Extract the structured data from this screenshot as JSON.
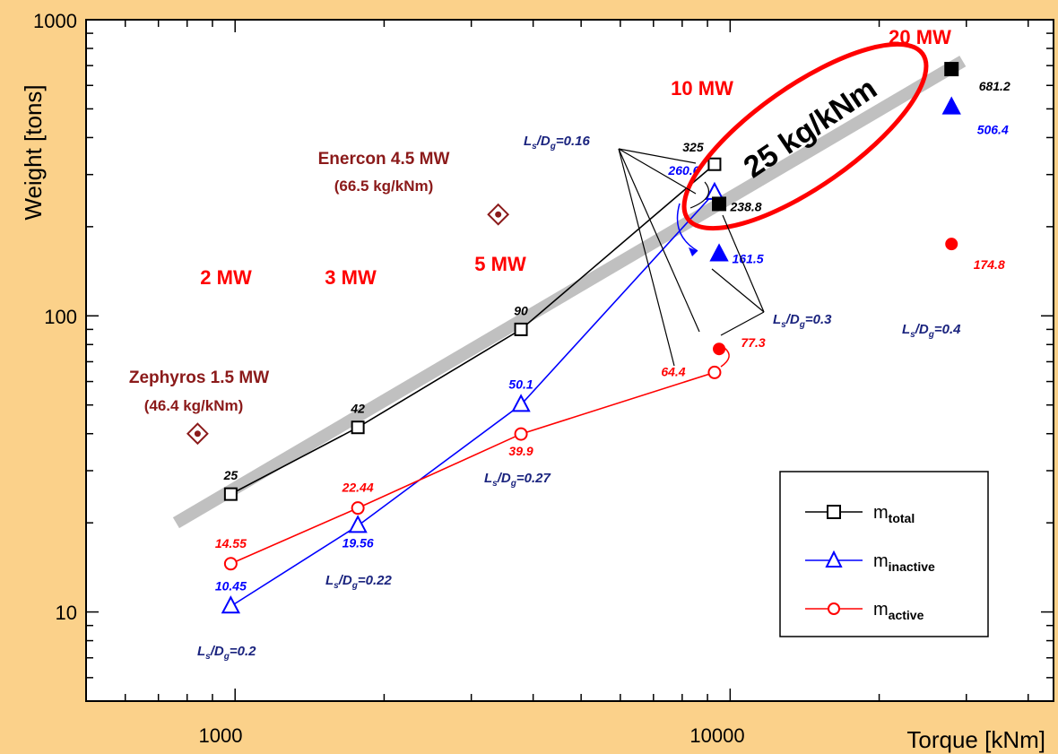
{
  "chart_data": {
    "type": "line",
    "xlabel": "Torque [kNm]",
    "ylabel": "Weight [tons]",
    "xscale": "log",
    "yscale": "log",
    "xlim": [
      500,
      45000
    ],
    "ylim": [
      5,
      1000
    ],
    "x_ticks": [
      {
        "v": 1000,
        "label": "1000"
      },
      {
        "v": 10000,
        "label": "10000"
      }
    ],
    "y_ticks": [
      {
        "v": 10,
        "label": "10"
      },
      {
        "v": 100,
        "label": "100"
      },
      {
        "v": 1000,
        "label": "1000"
      }
    ],
    "trend": {
      "x": [
        760,
        29500
      ],
      "y": [
        20,
        725
      ],
      "label": "25 kg/kNm"
    },
    "series": [
      {
        "name": "m",
        "sub": "total",
        "key": "total",
        "color": "#000000",
        "marker": "square",
        "x": [
          980,
          1770,
          3780,
          9300
        ],
        "y": [
          25,
          42,
          90,
          325
        ],
        "labels": [
          "25",
          "42",
          "90",
          "325"
        ]
      },
      {
        "name": "m",
        "sub": "inactive",
        "key": "inactive",
        "color": "#0000ff",
        "marker": "triangle",
        "x": [
          980,
          1770,
          3780,
          9300
        ],
        "y": [
          10.45,
          19.56,
          50.1,
          260.6
        ],
        "labels": [
          "10.45",
          "19.56",
          "50.1",
          "260.6"
        ]
      },
      {
        "name": "m",
        "sub": "active",
        "key": "active",
        "color": "#ff0000",
        "marker": "circle",
        "x": [
          980,
          1770,
          3780,
          9300
        ],
        "y": [
          14.55,
          22.44,
          39.9,
          64.4
        ],
        "labels": [
          "14.55",
          "22.44",
          "39.9",
          "64.4"
        ]
      }
    ],
    "extra_points": [
      {
        "key": "total",
        "x": [
          9500,
          28000
        ],
        "y": [
          238.8,
          681.2
        ],
        "labels": [
          "238.8",
          "681.2"
        ]
      },
      {
        "key": "inactive",
        "x": [
          9500,
          28000
        ],
        "y": [
          161.5,
          506.4
        ],
        "labels": [
          "161.5",
          "506.4"
        ]
      },
      {
        "key": "active",
        "x": [
          9500,
          28000
        ],
        "y": [
          77.3,
          174.8
        ],
        "labels": [
          "77.3",
          "174.8"
        ]
      }
    ],
    "reference_machines": [
      {
        "name": "Zephyros 1.5 MW",
        "ratio": "(46.4 kg/kNm)",
        "x": 840,
        "y": 40
      },
      {
        "name": "Enercon 4.5 MW",
        "ratio": "(66.5 kg/kNm)",
        "x": 3400,
        "y": 220
      }
    ],
    "power_labels": [
      "2 MW",
      "3 MW",
      "5 MW",
      "10 MW",
      "20 MW"
    ],
    "ratio_labels": [
      {
        "L": "L",
        "s": "s",
        "D": "D",
        "g": "g",
        "value": "=0.16"
      },
      {
        "L": "L",
        "s": "s",
        "D": "D",
        "g": "g",
        "value": "=0.3"
      },
      {
        "L": "L",
        "s": "s",
        "D": "D",
        "g": "g",
        "value": "=0.4"
      },
      {
        "L": "L",
        "s": "s",
        "D": "D",
        "g": "g",
        "value": "=0.27"
      },
      {
        "L": "L",
        "s": "s",
        "D": "D",
        "g": "g",
        "value": "=0.22"
      },
      {
        "L": "L",
        "s": "s",
        "D": "D",
        "g": "g",
        "value": "=0.2"
      }
    ],
    "colors": {
      "background": "#fbd18a",
      "plot_bg": "#ffffff",
      "power": "#ff0000",
      "reference": "#8b1a1a",
      "trend": "#c0c0c0",
      "ratio_text": "#1a237e"
    },
    "grid": false,
    "legend": "bottom-right"
  }
}
